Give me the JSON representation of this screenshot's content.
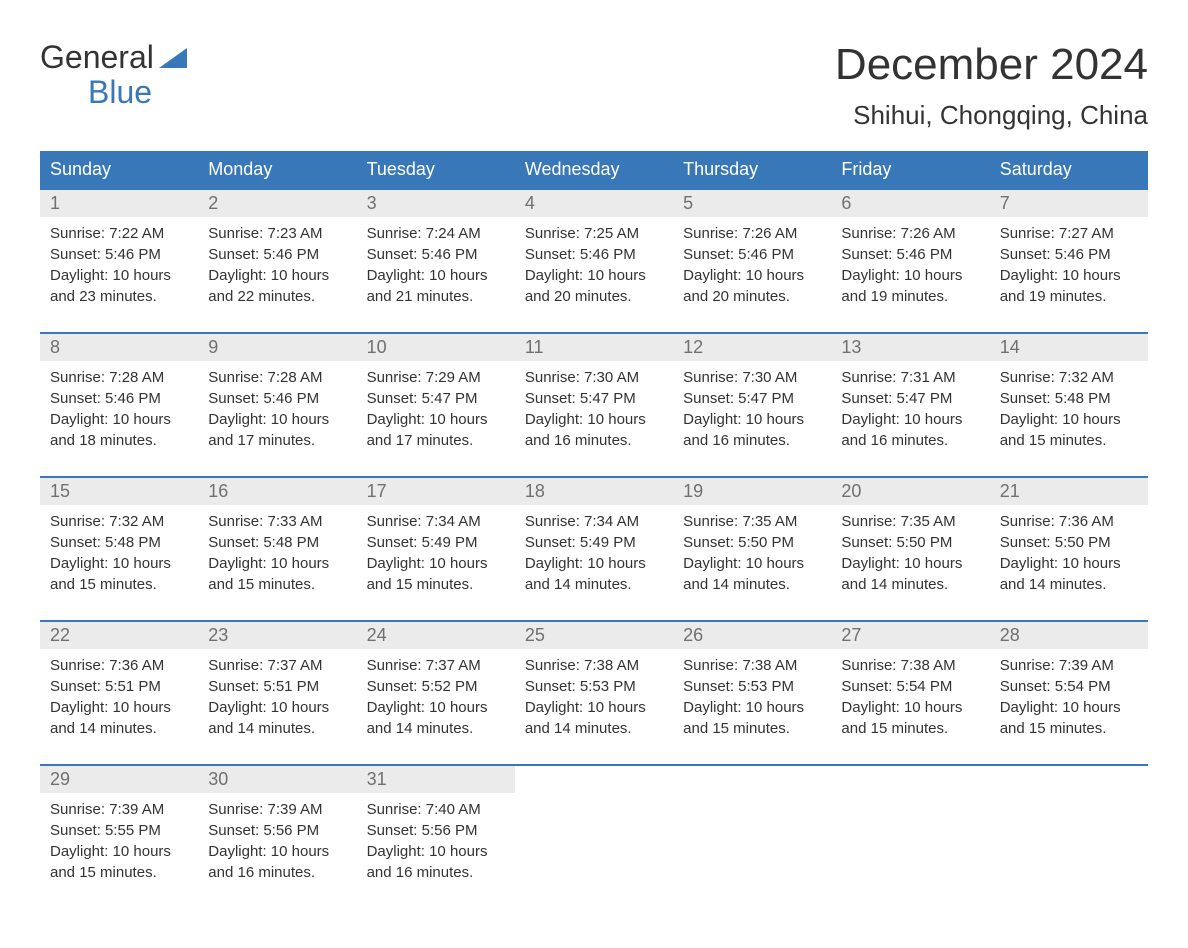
{
  "logo": {
    "line1": "General",
    "line2": "Blue",
    "triangle_color": "#3978b8"
  },
  "title": "December 2024",
  "location": "Shihui, Chongqing, China",
  "weekdays": [
    "Sunday",
    "Monday",
    "Tuesday",
    "Wednesday",
    "Thursday",
    "Friday",
    "Saturday"
  ],
  "colors": {
    "header_bg": "#3978b8",
    "header_text": "#ffffff",
    "daynum_bg": "#ebebeb",
    "daynum_text": "#707070",
    "body_text": "#333333",
    "border": "#3978b8"
  },
  "days": [
    {
      "num": "1",
      "sunrise": "Sunrise: 7:22 AM",
      "sunset": "Sunset: 5:46 PM",
      "daylight1": "Daylight: 10 hours",
      "daylight2": "and 23 minutes."
    },
    {
      "num": "2",
      "sunrise": "Sunrise: 7:23 AM",
      "sunset": "Sunset: 5:46 PM",
      "daylight1": "Daylight: 10 hours",
      "daylight2": "and 22 minutes."
    },
    {
      "num": "3",
      "sunrise": "Sunrise: 7:24 AM",
      "sunset": "Sunset: 5:46 PM",
      "daylight1": "Daylight: 10 hours",
      "daylight2": "and 21 minutes."
    },
    {
      "num": "4",
      "sunrise": "Sunrise: 7:25 AM",
      "sunset": "Sunset: 5:46 PM",
      "daylight1": "Daylight: 10 hours",
      "daylight2": "and 20 minutes."
    },
    {
      "num": "5",
      "sunrise": "Sunrise: 7:26 AM",
      "sunset": "Sunset: 5:46 PM",
      "daylight1": "Daylight: 10 hours",
      "daylight2": "and 20 minutes."
    },
    {
      "num": "6",
      "sunrise": "Sunrise: 7:26 AM",
      "sunset": "Sunset: 5:46 PM",
      "daylight1": "Daylight: 10 hours",
      "daylight2": "and 19 minutes."
    },
    {
      "num": "7",
      "sunrise": "Sunrise: 7:27 AM",
      "sunset": "Sunset: 5:46 PM",
      "daylight1": "Daylight: 10 hours",
      "daylight2": "and 19 minutes."
    },
    {
      "num": "8",
      "sunrise": "Sunrise: 7:28 AM",
      "sunset": "Sunset: 5:46 PM",
      "daylight1": "Daylight: 10 hours",
      "daylight2": "and 18 minutes."
    },
    {
      "num": "9",
      "sunrise": "Sunrise: 7:28 AM",
      "sunset": "Sunset: 5:46 PM",
      "daylight1": "Daylight: 10 hours",
      "daylight2": "and 17 minutes."
    },
    {
      "num": "10",
      "sunrise": "Sunrise: 7:29 AM",
      "sunset": "Sunset: 5:47 PM",
      "daylight1": "Daylight: 10 hours",
      "daylight2": "and 17 minutes."
    },
    {
      "num": "11",
      "sunrise": "Sunrise: 7:30 AM",
      "sunset": "Sunset: 5:47 PM",
      "daylight1": "Daylight: 10 hours",
      "daylight2": "and 16 minutes."
    },
    {
      "num": "12",
      "sunrise": "Sunrise: 7:30 AM",
      "sunset": "Sunset: 5:47 PM",
      "daylight1": "Daylight: 10 hours",
      "daylight2": "and 16 minutes."
    },
    {
      "num": "13",
      "sunrise": "Sunrise: 7:31 AM",
      "sunset": "Sunset: 5:47 PM",
      "daylight1": "Daylight: 10 hours",
      "daylight2": "and 16 minutes."
    },
    {
      "num": "14",
      "sunrise": "Sunrise: 7:32 AM",
      "sunset": "Sunset: 5:48 PM",
      "daylight1": "Daylight: 10 hours",
      "daylight2": "and 15 minutes."
    },
    {
      "num": "15",
      "sunrise": "Sunrise: 7:32 AM",
      "sunset": "Sunset: 5:48 PM",
      "daylight1": "Daylight: 10 hours",
      "daylight2": "and 15 minutes."
    },
    {
      "num": "16",
      "sunrise": "Sunrise: 7:33 AM",
      "sunset": "Sunset: 5:48 PM",
      "daylight1": "Daylight: 10 hours",
      "daylight2": "and 15 minutes."
    },
    {
      "num": "17",
      "sunrise": "Sunrise: 7:34 AM",
      "sunset": "Sunset: 5:49 PM",
      "daylight1": "Daylight: 10 hours",
      "daylight2": "and 15 minutes."
    },
    {
      "num": "18",
      "sunrise": "Sunrise: 7:34 AM",
      "sunset": "Sunset: 5:49 PM",
      "daylight1": "Daylight: 10 hours",
      "daylight2": "and 14 minutes."
    },
    {
      "num": "19",
      "sunrise": "Sunrise: 7:35 AM",
      "sunset": "Sunset: 5:50 PM",
      "daylight1": "Daylight: 10 hours",
      "daylight2": "and 14 minutes."
    },
    {
      "num": "20",
      "sunrise": "Sunrise: 7:35 AM",
      "sunset": "Sunset: 5:50 PM",
      "daylight1": "Daylight: 10 hours",
      "daylight2": "and 14 minutes."
    },
    {
      "num": "21",
      "sunrise": "Sunrise: 7:36 AM",
      "sunset": "Sunset: 5:50 PM",
      "daylight1": "Daylight: 10 hours",
      "daylight2": "and 14 minutes."
    },
    {
      "num": "22",
      "sunrise": "Sunrise: 7:36 AM",
      "sunset": "Sunset: 5:51 PM",
      "daylight1": "Daylight: 10 hours",
      "daylight2": "and 14 minutes."
    },
    {
      "num": "23",
      "sunrise": "Sunrise: 7:37 AM",
      "sunset": "Sunset: 5:51 PM",
      "daylight1": "Daylight: 10 hours",
      "daylight2": "and 14 minutes."
    },
    {
      "num": "24",
      "sunrise": "Sunrise: 7:37 AM",
      "sunset": "Sunset: 5:52 PM",
      "daylight1": "Daylight: 10 hours",
      "daylight2": "and 14 minutes."
    },
    {
      "num": "25",
      "sunrise": "Sunrise: 7:38 AM",
      "sunset": "Sunset: 5:53 PM",
      "daylight1": "Daylight: 10 hours",
      "daylight2": "and 14 minutes."
    },
    {
      "num": "26",
      "sunrise": "Sunrise: 7:38 AM",
      "sunset": "Sunset: 5:53 PM",
      "daylight1": "Daylight: 10 hours",
      "daylight2": "and 15 minutes."
    },
    {
      "num": "27",
      "sunrise": "Sunrise: 7:38 AM",
      "sunset": "Sunset: 5:54 PM",
      "daylight1": "Daylight: 10 hours",
      "daylight2": "and 15 minutes."
    },
    {
      "num": "28",
      "sunrise": "Sunrise: 7:39 AM",
      "sunset": "Sunset: 5:54 PM",
      "daylight1": "Daylight: 10 hours",
      "daylight2": "and 15 minutes."
    },
    {
      "num": "29",
      "sunrise": "Sunrise: 7:39 AM",
      "sunset": "Sunset: 5:55 PM",
      "daylight1": "Daylight: 10 hours",
      "daylight2": "and 15 minutes."
    },
    {
      "num": "30",
      "sunrise": "Sunrise: 7:39 AM",
      "sunset": "Sunset: 5:56 PM",
      "daylight1": "Daylight: 10 hours",
      "daylight2": "and 16 minutes."
    },
    {
      "num": "31",
      "sunrise": "Sunrise: 7:40 AM",
      "sunset": "Sunset: 5:56 PM",
      "daylight1": "Daylight: 10 hours",
      "daylight2": "and 16 minutes."
    }
  ]
}
